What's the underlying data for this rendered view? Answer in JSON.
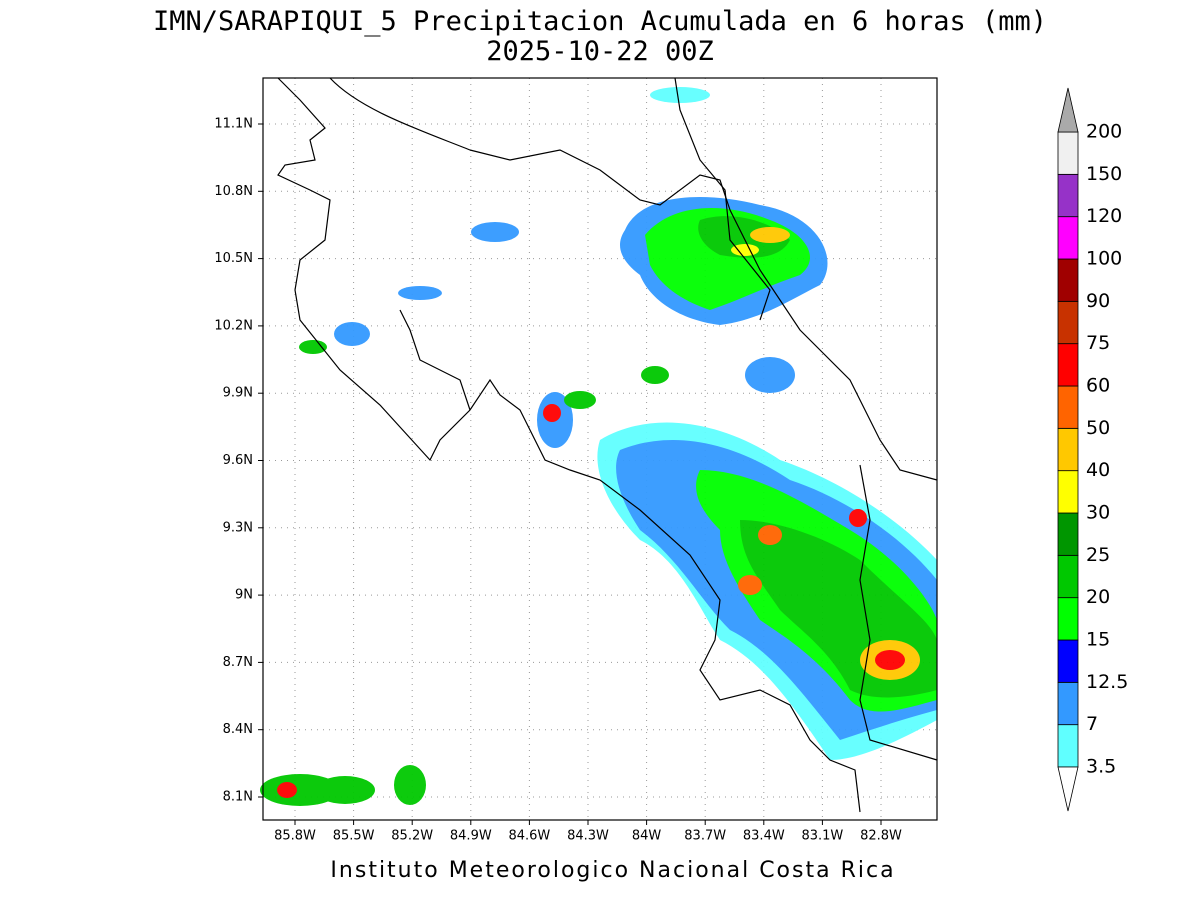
{
  "title": "IMN/SARAPIQUI_5 Precipitacion Acumulada en 6 horas (mm)",
  "subtitle": "2025-10-22 00Z",
  "map": {
    "lon_labels": [
      "85.8W",
      "85.5W",
      "85.2W",
      "84.9W",
      "84.6W",
      "84.3W",
      "84W",
      "83.7W",
      "83.4W",
      "83.1W",
      "82.8W"
    ],
    "lat_labels": [
      "11.1N",
      "10.8N",
      "10.5N",
      "10.2N",
      "9.9N",
      "9.6N",
      "9.3N",
      "9N",
      "8.7N",
      "8.4N",
      "8.1N"
    ]
  },
  "legend": {
    "levels": [
      3.5,
      7,
      12.5,
      15,
      20,
      25,
      30,
      40,
      50,
      60,
      75,
      90,
      100,
      120,
      150,
      200
    ],
    "colors": [
      "#60ffff",
      "#3399ff",
      "#0000ff",
      "#00ff00",
      "#00c800",
      "#009600",
      "#ffff00",
      "#ffc800",
      "#ff6400",
      "#ff0000",
      "#c83200",
      "#a00000",
      "#ff00ff",
      "#9632c8",
      "#f0f0f0"
    ],
    "over_color": "#aaaaaa"
  },
  "footer": "Instituto Meteorologico Nacional Costa Rica"
}
